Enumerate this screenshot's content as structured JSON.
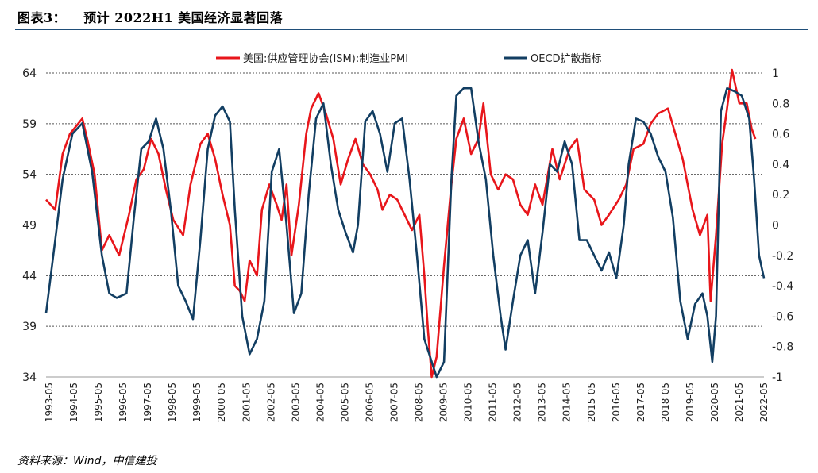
{
  "header": {
    "figure_label": "图表3：",
    "title": "预计 2022H1 美国经济显著回落"
  },
  "footer": {
    "source": "资料来源：Wind，中信建投"
  },
  "chart_data": {
    "type": "line",
    "title": "预计 2022H1 美国经济显著回落",
    "legend_position": "top-center",
    "grid": "horizontal-dashed",
    "left_axis": {
      "ylim": [
        34,
        64
      ],
      "ticks": [
        34,
        39,
        44,
        49,
        54,
        59,
        64
      ]
    },
    "right_axis": {
      "ylim": [
        -1,
        1
      ],
      "ticks": [
        -1,
        -0.8,
        -0.6,
        -0.4,
        -0.2,
        0,
        0.2,
        0.4,
        0.6,
        0.8,
        1
      ]
    },
    "x_ticks": [
      "1993-05",
      "1994-05",
      "1995-05",
      "1996-05",
      "1997-05",
      "1998-05",
      "1999-05",
      "2000-05",
      "2001-05",
      "2002-05",
      "2003-05",
      "2004-05",
      "2005-05",
      "2006-05",
      "2007-05",
      "2008-05",
      "2009-05",
      "2010-05",
      "2011-05",
      "2012-05",
      "2013-05",
      "2014-05",
      "2015-05",
      "2016-05",
      "2017-05",
      "2018-05",
      "2019-05",
      "2020-05",
      "2021-05",
      "2022-05"
    ],
    "series": [
      {
        "name": "美国:供应管理协会(ISM):制造业PMI",
        "axis": "left",
        "color": "#e8161b",
        "points": [
          [
            1993.33,
            51.5
          ],
          [
            1993.7,
            50.5
          ],
          [
            1994.0,
            56
          ],
          [
            1994.3,
            58
          ],
          [
            1994.8,
            59.5
          ],
          [
            1995.0,
            57.5
          ],
          [
            1995.3,
            54
          ],
          [
            1995.6,
            46.5
          ],
          [
            1995.9,
            48
          ],
          [
            1996.3,
            46
          ],
          [
            1996.7,
            50
          ],
          [
            1997.0,
            53.5
          ],
          [
            1997.3,
            54.5
          ],
          [
            1997.6,
            57.5
          ],
          [
            1997.9,
            56
          ],
          [
            1998.2,
            52.5
          ],
          [
            1998.5,
            49.5
          ],
          [
            1998.9,
            48
          ],
          [
            1999.2,
            53
          ],
          [
            1999.6,
            57
          ],
          [
            1999.9,
            58
          ],
          [
            2000.2,
            55.5
          ],
          [
            2000.5,
            52
          ],
          [
            2000.8,
            49
          ],
          [
            2001.0,
            43
          ],
          [
            2001.2,
            42.5
          ],
          [
            2001.4,
            41.5
          ],
          [
            2001.6,
            45.5
          ],
          [
            2001.9,
            44
          ],
          [
            2002.1,
            50.5
          ],
          [
            2002.4,
            53
          ],
          [
            2002.7,
            51
          ],
          [
            2002.9,
            49.5
          ],
          [
            2003.1,
            53
          ],
          [
            2003.3,
            46
          ],
          [
            2003.6,
            51
          ],
          [
            2003.9,
            58
          ],
          [
            2004.1,
            60.5
          ],
          [
            2004.4,
            62
          ],
          [
            2004.7,
            60
          ],
          [
            2005.0,
            57.5
          ],
          [
            2005.3,
            53
          ],
          [
            2005.6,
            55.5
          ],
          [
            2005.9,
            57.5
          ],
          [
            2006.2,
            55
          ],
          [
            2006.5,
            54
          ],
          [
            2006.8,
            52.5
          ],
          [
            2007.0,
            50.5
          ],
          [
            2007.3,
            52
          ],
          [
            2007.6,
            51.5
          ],
          [
            2007.9,
            50
          ],
          [
            2008.2,
            48.5
          ],
          [
            2008.5,
            50
          ],
          [
            2008.7,
            44
          ],
          [
            2008.85,
            38.5
          ],
          [
            2009.0,
            33
          ],
          [
            2009.2,
            36
          ],
          [
            2009.5,
            45
          ],
          [
            2009.8,
            53
          ],
          [
            2010.0,
            57.5
          ],
          [
            2010.3,
            59.5
          ],
          [
            2010.6,
            56
          ],
          [
            2010.9,
            57.5
          ],
          [
            2011.1,
            61
          ],
          [
            2011.4,
            54
          ],
          [
            2011.7,
            52.5
          ],
          [
            2012.0,
            54
          ],
          [
            2012.3,
            53.5
          ],
          [
            2012.6,
            51
          ],
          [
            2012.9,
            50
          ],
          [
            2013.2,
            53
          ],
          [
            2013.5,
            51
          ],
          [
            2013.9,
            56.5
          ],
          [
            2014.2,
            53.5
          ],
          [
            2014.6,
            56.5
          ],
          [
            2014.9,
            57.5
          ],
          [
            2015.2,
            52.5
          ],
          [
            2015.6,
            51.5
          ],
          [
            2015.9,
            49
          ],
          [
            2016.2,
            50
          ],
          [
            2016.6,
            51.5
          ],
          [
            2016.9,
            53
          ],
          [
            2017.2,
            56.5
          ],
          [
            2017.6,
            57
          ],
          [
            2017.9,
            59
          ],
          [
            2018.2,
            60
          ],
          [
            2018.6,
            60.5
          ],
          [
            2018.9,
            58
          ],
          [
            2019.2,
            55.5
          ],
          [
            2019.6,
            50.5
          ],
          [
            2019.9,
            48
          ],
          [
            2020.2,
            50
          ],
          [
            2020.33,
            41.5
          ],
          [
            2020.55,
            48
          ],
          [
            2020.8,
            57
          ],
          [
            2021.0,
            60.5
          ],
          [
            2021.2,
            64.5
          ],
          [
            2021.5,
            61
          ],
          [
            2021.8,
            61
          ],
          [
            2022.0,
            58.5
          ],
          [
            2022.15,
            57.5
          ]
        ]
      },
      {
        "name": "OECD扩散指标",
        "axis": "right",
        "color": "#123e62",
        "points": [
          [
            1993.33,
            -0.58
          ],
          [
            1993.7,
            -0.1
          ],
          [
            1994.0,
            0.3
          ],
          [
            1994.4,
            0.6
          ],
          [
            1994.8,
            0.67
          ],
          [
            1995.2,
            0.35
          ],
          [
            1995.6,
            -0.2
          ],
          [
            1995.9,
            -0.45
          ],
          [
            1996.2,
            -0.48
          ],
          [
            1996.6,
            -0.45
          ],
          [
            1996.9,
            0.05
          ],
          [
            1997.2,
            0.5
          ],
          [
            1997.5,
            0.55
          ],
          [
            1997.8,
            0.7
          ],
          [
            1998.1,
            0.5
          ],
          [
            1998.4,
            0.1
          ],
          [
            1998.7,
            -0.4
          ],
          [
            1999.0,
            -0.5
          ],
          [
            1999.3,
            -0.62
          ],
          [
            1999.6,
            -0.1
          ],
          [
            1999.9,
            0.5
          ],
          [
            2000.2,
            0.72
          ],
          [
            2000.5,
            0.78
          ],
          [
            2000.8,
            0.68
          ],
          [
            2001.0,
            0.1
          ],
          [
            2001.3,
            -0.6
          ],
          [
            2001.6,
            -0.85
          ],
          [
            2001.9,
            -0.75
          ],
          [
            2002.2,
            -0.5
          ],
          [
            2002.5,
            0.35
          ],
          [
            2002.8,
            0.5
          ],
          [
            2003.1,
            0.0
          ],
          [
            2003.4,
            -0.58
          ],
          [
            2003.7,
            -0.45
          ],
          [
            2004.0,
            0.2
          ],
          [
            2004.3,
            0.7
          ],
          [
            2004.6,
            0.8
          ],
          [
            2004.9,
            0.4
          ],
          [
            2005.2,
            0.1
          ],
          [
            2005.5,
            -0.05
          ],
          [
            2005.8,
            -0.18
          ],
          [
            2006.0,
            0.0
          ],
          [
            2006.3,
            0.68
          ],
          [
            2006.6,
            0.75
          ],
          [
            2006.9,
            0.6
          ],
          [
            2007.2,
            0.35
          ],
          [
            2007.5,
            0.67
          ],
          [
            2007.8,
            0.7
          ],
          [
            2008.1,
            0.3
          ],
          [
            2008.4,
            -0.2
          ],
          [
            2008.7,
            -0.75
          ],
          [
            2008.9,
            -0.85
          ],
          [
            2009.2,
            -1.0
          ],
          [
            2009.5,
            -0.9
          ],
          [
            2009.8,
            0.3
          ],
          [
            2010.0,
            0.85
          ],
          [
            2010.3,
            0.9
          ],
          [
            2010.6,
            0.9
          ],
          [
            2010.9,
            0.55
          ],
          [
            2011.2,
            0.3
          ],
          [
            2011.5,
            -0.2
          ],
          [
            2011.8,
            -0.6
          ],
          [
            2012.0,
            -0.82
          ],
          [
            2012.3,
            -0.5
          ],
          [
            2012.6,
            -0.2
          ],
          [
            2012.9,
            -0.1
          ],
          [
            2013.2,
            -0.45
          ],
          [
            2013.5,
            -0.05
          ],
          [
            2013.8,
            0.4
          ],
          [
            2014.1,
            0.35
          ],
          [
            2014.4,
            0.55
          ],
          [
            2014.7,
            0.4
          ],
          [
            2015.0,
            -0.1
          ],
          [
            2015.3,
            -0.1
          ],
          [
            2015.6,
            -0.2
          ],
          [
            2015.9,
            -0.3
          ],
          [
            2016.2,
            -0.18
          ],
          [
            2016.5,
            -0.35
          ],
          [
            2016.8,
            0.0
          ],
          [
            2017.0,
            0.4
          ],
          [
            2017.3,
            0.7
          ],
          [
            2017.6,
            0.68
          ],
          [
            2017.9,
            0.6
          ],
          [
            2018.2,
            0.45
          ],
          [
            2018.5,
            0.35
          ],
          [
            2018.8,
            0.05
          ],
          [
            2019.1,
            -0.5
          ],
          [
            2019.4,
            -0.75
          ],
          [
            2019.7,
            -0.52
          ],
          [
            2020.0,
            -0.45
          ],
          [
            2020.2,
            -0.6
          ],
          [
            2020.4,
            -0.9
          ],
          [
            2020.55,
            -0.6
          ],
          [
            2020.75,
            0.75
          ],
          [
            2021.0,
            0.9
          ],
          [
            2021.3,
            0.88
          ],
          [
            2021.6,
            0.85
          ],
          [
            2021.9,
            0.7
          ],
          [
            2022.1,
            0.3
          ],
          [
            2022.3,
            -0.2
          ],
          [
            2022.5,
            -0.35
          ]
        ]
      }
    ]
  }
}
